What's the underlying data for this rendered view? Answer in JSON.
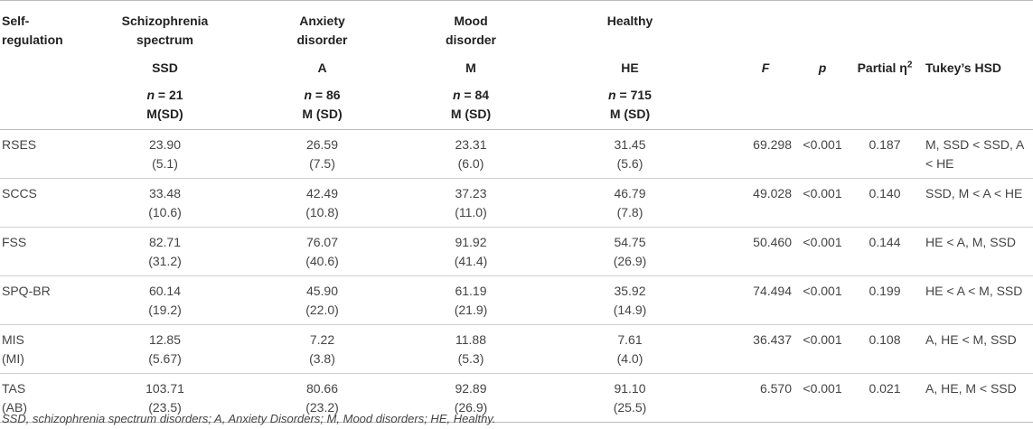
{
  "header": {
    "label": [
      "Self-",
      "regulation"
    ],
    "groups": [
      {
        "name": [
          "Schizophrenia",
          "spectrum"
        ],
        "abbr": "SSD",
        "n_prefix": "n",
        "n_value": "= 21",
        "stat": "M(SD)"
      },
      {
        "name": [
          "Anxiety",
          "disorder"
        ],
        "abbr": "A",
        "n_prefix": "n",
        "n_value": "= 86",
        "stat": "M (SD)"
      },
      {
        "name": [
          "Mood",
          "disorder"
        ],
        "abbr": "M",
        "n_prefix": "n",
        "n_value": "= 84",
        "stat": "M (SD)"
      },
      {
        "name": [
          "Healthy",
          ""
        ],
        "abbr": "HE",
        "n_prefix": "n",
        "n_value": "= 715",
        "stat": "M (SD)"
      }
    ],
    "f": "F",
    "p": "p",
    "eta": "Partial η",
    "eta_sup": "2",
    "tukey": "Tukey’s HSD"
  },
  "rows": [
    {
      "label": [
        "RSES",
        ""
      ],
      "ssd": [
        "23.90",
        "(5.1)"
      ],
      "a": [
        "26.59",
        "(7.5)"
      ],
      "m": [
        "23.31",
        "(6.0)"
      ],
      "he": [
        "31.45",
        "(5.6)"
      ],
      "f": "69.298",
      "p": "<0.001",
      "eta": "0.187",
      "tukey": "M, SSD < SSD, A < HE"
    },
    {
      "label": [
        "SCCS",
        ""
      ],
      "ssd": [
        "33.48",
        "(10.6)"
      ],
      "a": [
        "42.49",
        "(10.8)"
      ],
      "m": [
        "37.23",
        "(11.0)"
      ],
      "he": [
        "46.79",
        "(7.8)"
      ],
      "f": "49.028",
      "p": "<0.001",
      "eta": "0.140",
      "tukey": "SSD, M < A < HE"
    },
    {
      "label": [
        "FSS",
        ""
      ],
      "ssd": [
        "82.71",
        "(31.2)"
      ],
      "a": [
        "76.07",
        "(40.6)"
      ],
      "m": [
        "91.92",
        "(41.4)"
      ],
      "he": [
        "54.75",
        "(26.9)"
      ],
      "f": "50.460",
      "p": "<0.001",
      "eta": "0.144",
      "tukey": "HE < A, M, SSD"
    },
    {
      "label": [
        "SPQ-BR",
        ""
      ],
      "ssd": [
        "60.14",
        "(19.2)"
      ],
      "a": [
        "45.90",
        "(22.0)"
      ],
      "m": [
        "61.19",
        "(21.9)"
      ],
      "he": [
        "35.92",
        "(14.9)"
      ],
      "f": "74.494",
      "p": "<0.001",
      "eta": "0.199",
      "tukey": "HE < A < M, SSD"
    },
    {
      "label": [
        "MIS",
        "(MI)"
      ],
      "ssd": [
        "12.85",
        "(5.67)"
      ],
      "a": [
        "7.22",
        "(3.8)"
      ],
      "m": [
        "11.88",
        "(5.3)"
      ],
      "he": [
        "7.61",
        "(4.0)"
      ],
      "f": "36.437",
      "p": "<0.001",
      "eta": "0.108",
      "tukey": "A, HE < M, SSD"
    },
    {
      "label": [
        "TAS",
        "(AB)"
      ],
      "ssd": [
        "103.71",
        "(23.5)"
      ],
      "a": [
        "80.66",
        "(23.2)"
      ],
      "m": [
        "92.89",
        "(26.9)"
      ],
      "he": [
        "91.10",
        "(25.5)"
      ],
      "f": "6.570",
      "p": "<0.001",
      "eta": "0.021",
      "tukey": "A, HE, M < SSD"
    }
  ],
  "footnote": "SSD, schizophrenia spectrum disorders; A, Anxiety Disorders; M, Mood disorders; HE, Healthy."
}
